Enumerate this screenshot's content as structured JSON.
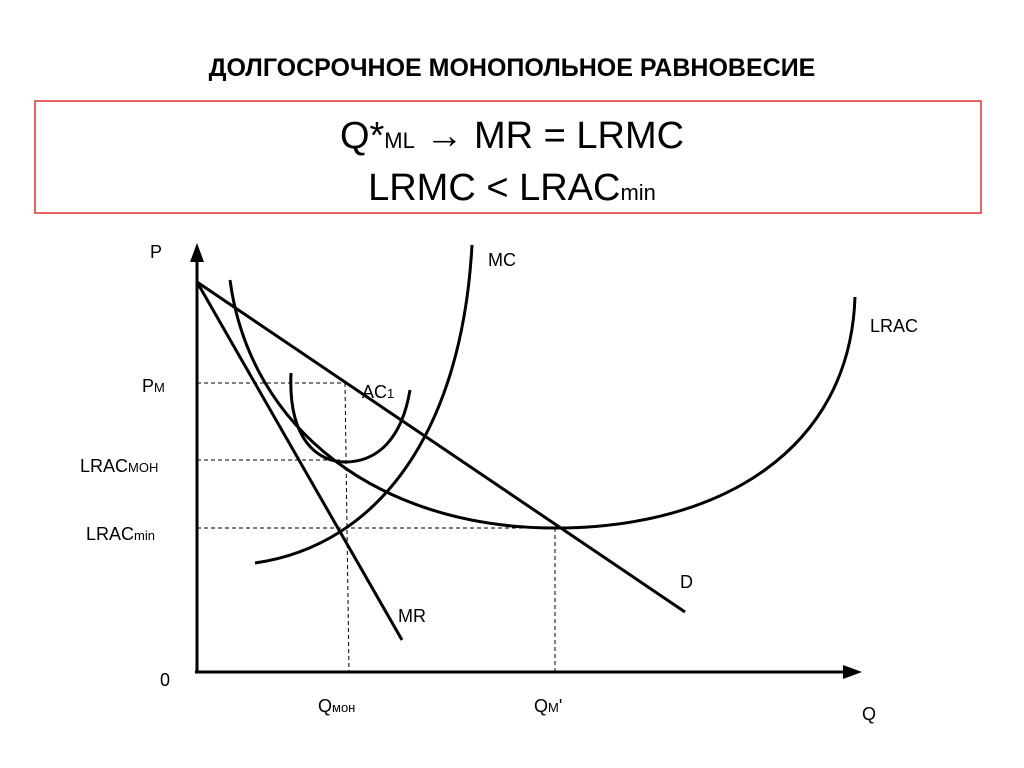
{
  "header": {
    "title": "ДОЛГОСРОЧНОЕ МОНОПОЛЬНОЕ РАВНОВЕСИЕ"
  },
  "formula": {
    "line1": {
      "main": "Q*",
      "sub": "ML",
      "rest": "→ MR = LRMC"
    },
    "line2": {
      "main": "LRMC < LRAC",
      "sub": "min"
    }
  },
  "graph": {
    "y_axis": "P",
    "x_axis": "Q",
    "origin": "0",
    "curves": {
      "mc": "MC",
      "lrac": "LRAC",
      "ac1": {
        "main": "AC",
        "sub": "1"
      },
      "d": "D",
      "mr": "MR"
    },
    "y_labels": {
      "pm": {
        "main": "P",
        "sub": "M"
      },
      "lrac_mon": {
        "main": "LRAC",
        "sub": "МОН"
      },
      "lrac_min": {
        "main": "LRAC",
        "sub": "min"
      }
    },
    "x_labels": {
      "q_mon": {
        "main": "Q",
        "sub": "мон"
      },
      "q_m": {
        "main": "Q",
        "sub": "M",
        "rest": "'"
      }
    }
  }
}
